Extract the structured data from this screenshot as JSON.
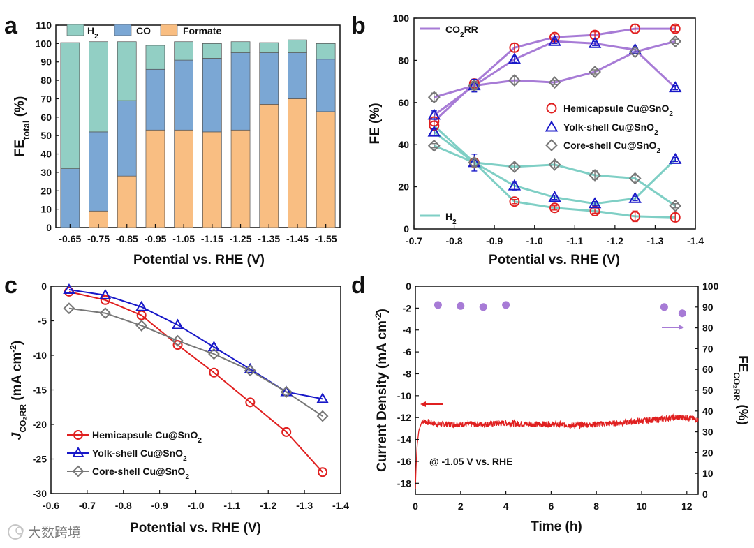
{
  "figure": {
    "panels": [
      "a",
      "b",
      "c",
      "d"
    ],
    "watermark": "大数跨境"
  },
  "chart_data": [
    {
      "panel": "a",
      "type": "bar",
      "stacked": true,
      "categories": [
        "-0.65",
        "-0.75",
        "-0.85",
        "-0.95",
        "-1.05",
        "-1.15",
        "-1.25",
        "-1.35",
        "-1.45",
        "-1.55"
      ],
      "series": [
        {
          "name": "Formate",
          "color": "#F9BE82",
          "values": [
            0,
            9,
            28,
            53,
            53,
            52,
            53,
            67,
            70,
            63
          ]
        },
        {
          "name": "CO",
          "color": "#7BA7D4",
          "values": [
            32,
            43,
            41,
            33,
            38,
            40,
            42,
            28,
            25,
            28.5
          ]
        },
        {
          "name": "H2",
          "color": "#92CFC4",
          "values": [
            68.5,
            49,
            32,
            13,
            10,
            8,
            6,
            5.5,
            7,
            8.5
          ]
        }
      ],
      "legend": {
        "placement": "top-left",
        "labels": [
          "H2",
          "CO",
          "Formate"
        ]
      },
      "xlabel": "Potential vs. RHE (V)",
      "ylabel": "FE",
      "ylabel_sub": "total",
      "ylabel_unit": " (%)",
      "ylim": [
        0,
        110
      ],
      "yticks": [
        0,
        10,
        20,
        30,
        40,
        50,
        60,
        70,
        80,
        90,
        100,
        110
      ]
    },
    {
      "panel": "b",
      "type": "line",
      "x": [
        -0.75,
        -0.85,
        -0.95,
        -1.05,
        -1.15,
        -1.25,
        -1.35
      ],
      "xlim": [
        -0.7,
        -1.4
      ],
      "ylim": [
        0,
        100
      ],
      "xticks": [
        "-0.7",
        "-0.8",
        "-0.9",
        "-1.0",
        "-1.1",
        "-1.2",
        "-1.3",
        "-1.4"
      ],
      "yticks": [
        0,
        20,
        40,
        60,
        80,
        100
      ],
      "xlabel": "Potential vs. RHE (V)",
      "ylabel": "FE (%)",
      "series": [
        {
          "name": "Hemicapsule Cu@SnO2",
          "group": "CO2RR",
          "marker": "circle",
          "color": "#E02020",
          "values": [
            51,
            69,
            86,
            91,
            92,
            95,
            95
          ],
          "errors": [
            2,
            2,
            2,
            1.5,
            1.5,
            2,
            1.5
          ]
        },
        {
          "name": "Yolk-shell Cu@SnO2",
          "group": "CO2RR",
          "marker": "triangle",
          "color": "#1818C8",
          "values": [
            54,
            68,
            80.5,
            89,
            88,
            85,
            67
          ],
          "errors": [
            2,
            3,
            1.5,
            1,
            1,
            1,
            1
          ]
        },
        {
          "name": "Core-shell Cu@SnO2",
          "group": "CO2RR",
          "marker": "diamond",
          "color": "#777777",
          "values": [
            62.5,
            68,
            70.5,
            69.5,
            74.5,
            84,
            89
          ],
          "errors": [
            2,
            2,
            2,
            1,
            1,
            1,
            1
          ]
        },
        {
          "name": "Hemicapsule Cu@SnO2",
          "group": "H2",
          "marker": "circle",
          "color": "#E02020",
          "values": [
            49,
            31.5,
            13,
            10,
            8.5,
            6,
            5.5
          ],
          "errors": [
            2,
            2,
            1,
            1,
            1,
            2.5,
            2
          ]
        },
        {
          "name": "Yolk-shell Cu@SnO2",
          "group": "H2",
          "marker": "triangle",
          "color": "#1818C8",
          "values": [
            46,
            31.5,
            20.5,
            15,
            12,
            14.5,
            33
          ],
          "errors": [
            1.5,
            4,
            2,
            1,
            1,
            1,
            1
          ]
        },
        {
          "name": "Core-shell Cu@SnO2",
          "group": "H2",
          "marker": "diamond",
          "color": "#777777",
          "values": [
            39.5,
            31.5,
            29.5,
            30.5,
            25.5,
            24,
            11
          ],
          "errors": [
            1,
            2,
            1.5,
            1.5,
            2,
            1.5,
            1
          ]
        }
      ],
      "line_colors": {
        "CO2RR": "#A77BD6",
        "H2": "#7FCFC5"
      },
      "group_labels": {
        "CO2RR": "CO2RR",
        "H2": "H2"
      },
      "legend": [
        "Hemicapsule Cu@SnO2",
        "Yolk-shell Cu@SnO2",
        "Core-shell Cu@SnO2"
      ]
    },
    {
      "panel": "c",
      "type": "line",
      "x": [
        -0.65,
        -0.75,
        -0.85,
        -0.95,
        -1.05,
        -1.15,
        -1.25,
        -1.35
      ],
      "xlim": [
        -0.6,
        -1.4
      ],
      "ylim": [
        -30,
        0
      ],
      "xticks": [
        "-0.6",
        "-0.7",
        "-0.8",
        "-0.9",
        "-1.0",
        "-1.1",
        "-1.2",
        "-1.3",
        "-1.4"
      ],
      "yticks": [
        0,
        -5,
        -10,
        -15,
        -20,
        -25,
        -30
      ],
      "xlabel": "Potential vs. RHE (V)",
      "ylabel": "J",
      "ylabel_sub": "CO2RR",
      "ylabel_unit": " (mA cm",
      "series": [
        {
          "name": "Hemicapsule Cu@SnO2",
          "marker": "circle",
          "color": "#E02020",
          "values": [
            -0.8,
            -2.0,
            -4.2,
            -8.5,
            -12.5,
            -16.8,
            -21.1,
            -26.9
          ]
        },
        {
          "name": "Yolk-shell Cu@SnO2",
          "marker": "triangle",
          "color": "#1818C8",
          "values": [
            -0.5,
            -1.3,
            -3.0,
            -5.6,
            -8.8,
            -12.0,
            -15.3,
            -16.3
          ]
        },
        {
          "name": "Core-shell Cu@SnO2",
          "marker": "diamond",
          "color": "#777777",
          "values": [
            -3.2,
            -3.9,
            -5.7,
            -7.9,
            -9.8,
            -12.2,
            -15.3,
            -18.8
          ]
        }
      ],
      "legend": [
        "Hemicapsule Cu@SnO2",
        "Yolk-shell Cu@SnO2",
        "Core-shell Cu@SnO2"
      ]
    },
    {
      "panel": "d",
      "type": "line",
      "xlim": [
        0,
        12.5
      ],
      "ylim_left": [
        -19,
        0
      ],
      "ylim_right": [
        0,
        100
      ],
      "xticks": [
        0,
        2,
        4,
        6,
        8,
        10,
        12
      ],
      "yticks_left": [
        0,
        -2,
        -4,
        -6,
        -8,
        -10,
        -12,
        -14,
        -16,
        -18
      ],
      "yticks_right": [
        0,
        10,
        20,
        30,
        40,
        50,
        60,
        70,
        80,
        90,
        100
      ],
      "xlabel": "Time (h)",
      "ylabel_left": "Current Density (mA cm",
      "ylabel_right": "FE",
      "ylabel_right_sub": "CO2RR",
      "ylabel_right_unit": " (%)",
      "annotation": "@ -1.05 V vs. RHE",
      "current_density": {
        "color": "#E02020",
        "t": [
          0,
          0.03,
          0.08,
          0.15,
          0.3,
          0.5,
          1,
          2,
          3,
          4,
          5,
          6,
          7,
          8,
          9,
          10,
          11,
          11.5,
          12,
          12.5
        ],
        "j": [
          -18.5,
          -16.5,
          -14.5,
          -13.2,
          -12.3,
          -12.4,
          -12.6,
          -12.6,
          -12.6,
          -12.5,
          -12.6,
          -12.6,
          -12.7,
          -12.6,
          -12.5,
          -12.3,
          -12.1,
          -12.0,
          -12.0,
          -12.2
        ]
      },
      "fe_co2rr": {
        "color": "#A77BD6",
        "t": [
          1,
          2,
          3,
          4,
          11,
          11.8
        ],
        "fe": [
          91,
          90.5,
          90,
          91,
          90,
          87
        ]
      }
    }
  ]
}
